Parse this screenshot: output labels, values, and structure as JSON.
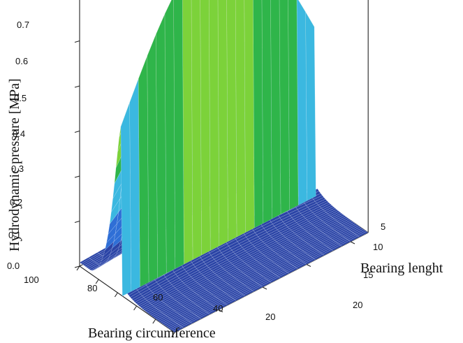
{
  "chart_data": {
    "type": "surface3d",
    "title": "",
    "xlabel": "Bearing circumference",
    "ylabel": "Bearing lenght",
    "zlabel": "Hydrodynamic pressure [MPa]",
    "x_ticks": [
      "100",
      "80",
      "60",
      "40",
      "20"
    ],
    "y_ticks": [
      "5",
      "10",
      "15",
      "20"
    ],
    "z_ticks": [
      "0.0",
      "0.1",
      "0.2",
      "0.3",
      "0.4",
      "0.5",
      "0.6",
      "0.7"
    ],
    "xlim": [
      0,
      100
    ],
    "ylim": [
      0,
      22
    ],
    "zlim": [
      0,
      0.7
    ],
    "peak_pressure": 0.68,
    "peak_position_circumference": 55,
    "colormap": [
      "#2b44a6",
      "#2f6fd6",
      "#3bb8e0",
      "#2fb54a",
      "#7cd23a",
      "#ffff33",
      "#ffb020",
      "#f06010",
      "#d42020"
    ],
    "grid": true
  }
}
